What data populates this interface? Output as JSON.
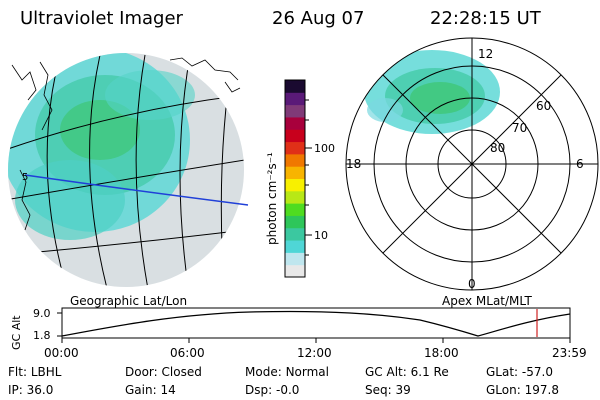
{
  "header": {
    "instrument": "Ultraviolet Imager",
    "date": "26 Aug 07",
    "time": "22:28:15 UT"
  },
  "left_panel": {
    "caption": "Geographic Lat/Lon"
  },
  "right_panel": {
    "caption": "Apex MLat/MLT",
    "mlt_labels": [
      "12",
      "18",
      "6",
      "0"
    ],
    "lat_labels": [
      "60",
      "70",
      "80"
    ]
  },
  "colorbar": {
    "unit_label": "photon cm⁻²s⁻¹",
    "tick_labels": [
      "100",
      "10"
    ],
    "colors": [
      "#e8e8e8",
      "#bfe6ee",
      "#4fd6d6",
      "#3bc8a0",
      "#2ec65a",
      "#4fdc20",
      "#b8e816",
      "#f8f000",
      "#f8b400",
      "#f07800",
      "#e03018",
      "#c8001c",
      "#a8003c",
      "#803a78",
      "#5a1a78",
      "#1a0a30"
    ]
  },
  "timeline": {
    "ylabel": "GC Alt",
    "ytick_labels": [
      "9.0",
      "1.8"
    ],
    "xtick_labels": [
      "00:00",
      "06:00",
      "12:00",
      "18:00",
      "23:59"
    ],
    "marker_color": "#d02020"
  },
  "status": {
    "row1": [
      {
        "label": "Flt:",
        "value": "LBHL"
      },
      {
        "label": "Door:",
        "value": "Closed"
      },
      {
        "label": "Mode:",
        "value": "Normal"
      },
      {
        "label": "GC Alt:",
        "value": "6.1 Re"
      },
      {
        "label": "GLat:",
        "value": "-57.0"
      }
    ],
    "row2": [
      {
        "label": "IP:",
        "value": "36.0"
      },
      {
        "label": "Gain:",
        "value": "14"
      },
      {
        "label": "Dsp:",
        "value": "-0.0"
      },
      {
        "label": "Seq:",
        "value": "39"
      },
      {
        "label": "GLon:",
        "value": "197.8"
      }
    ]
  }
}
